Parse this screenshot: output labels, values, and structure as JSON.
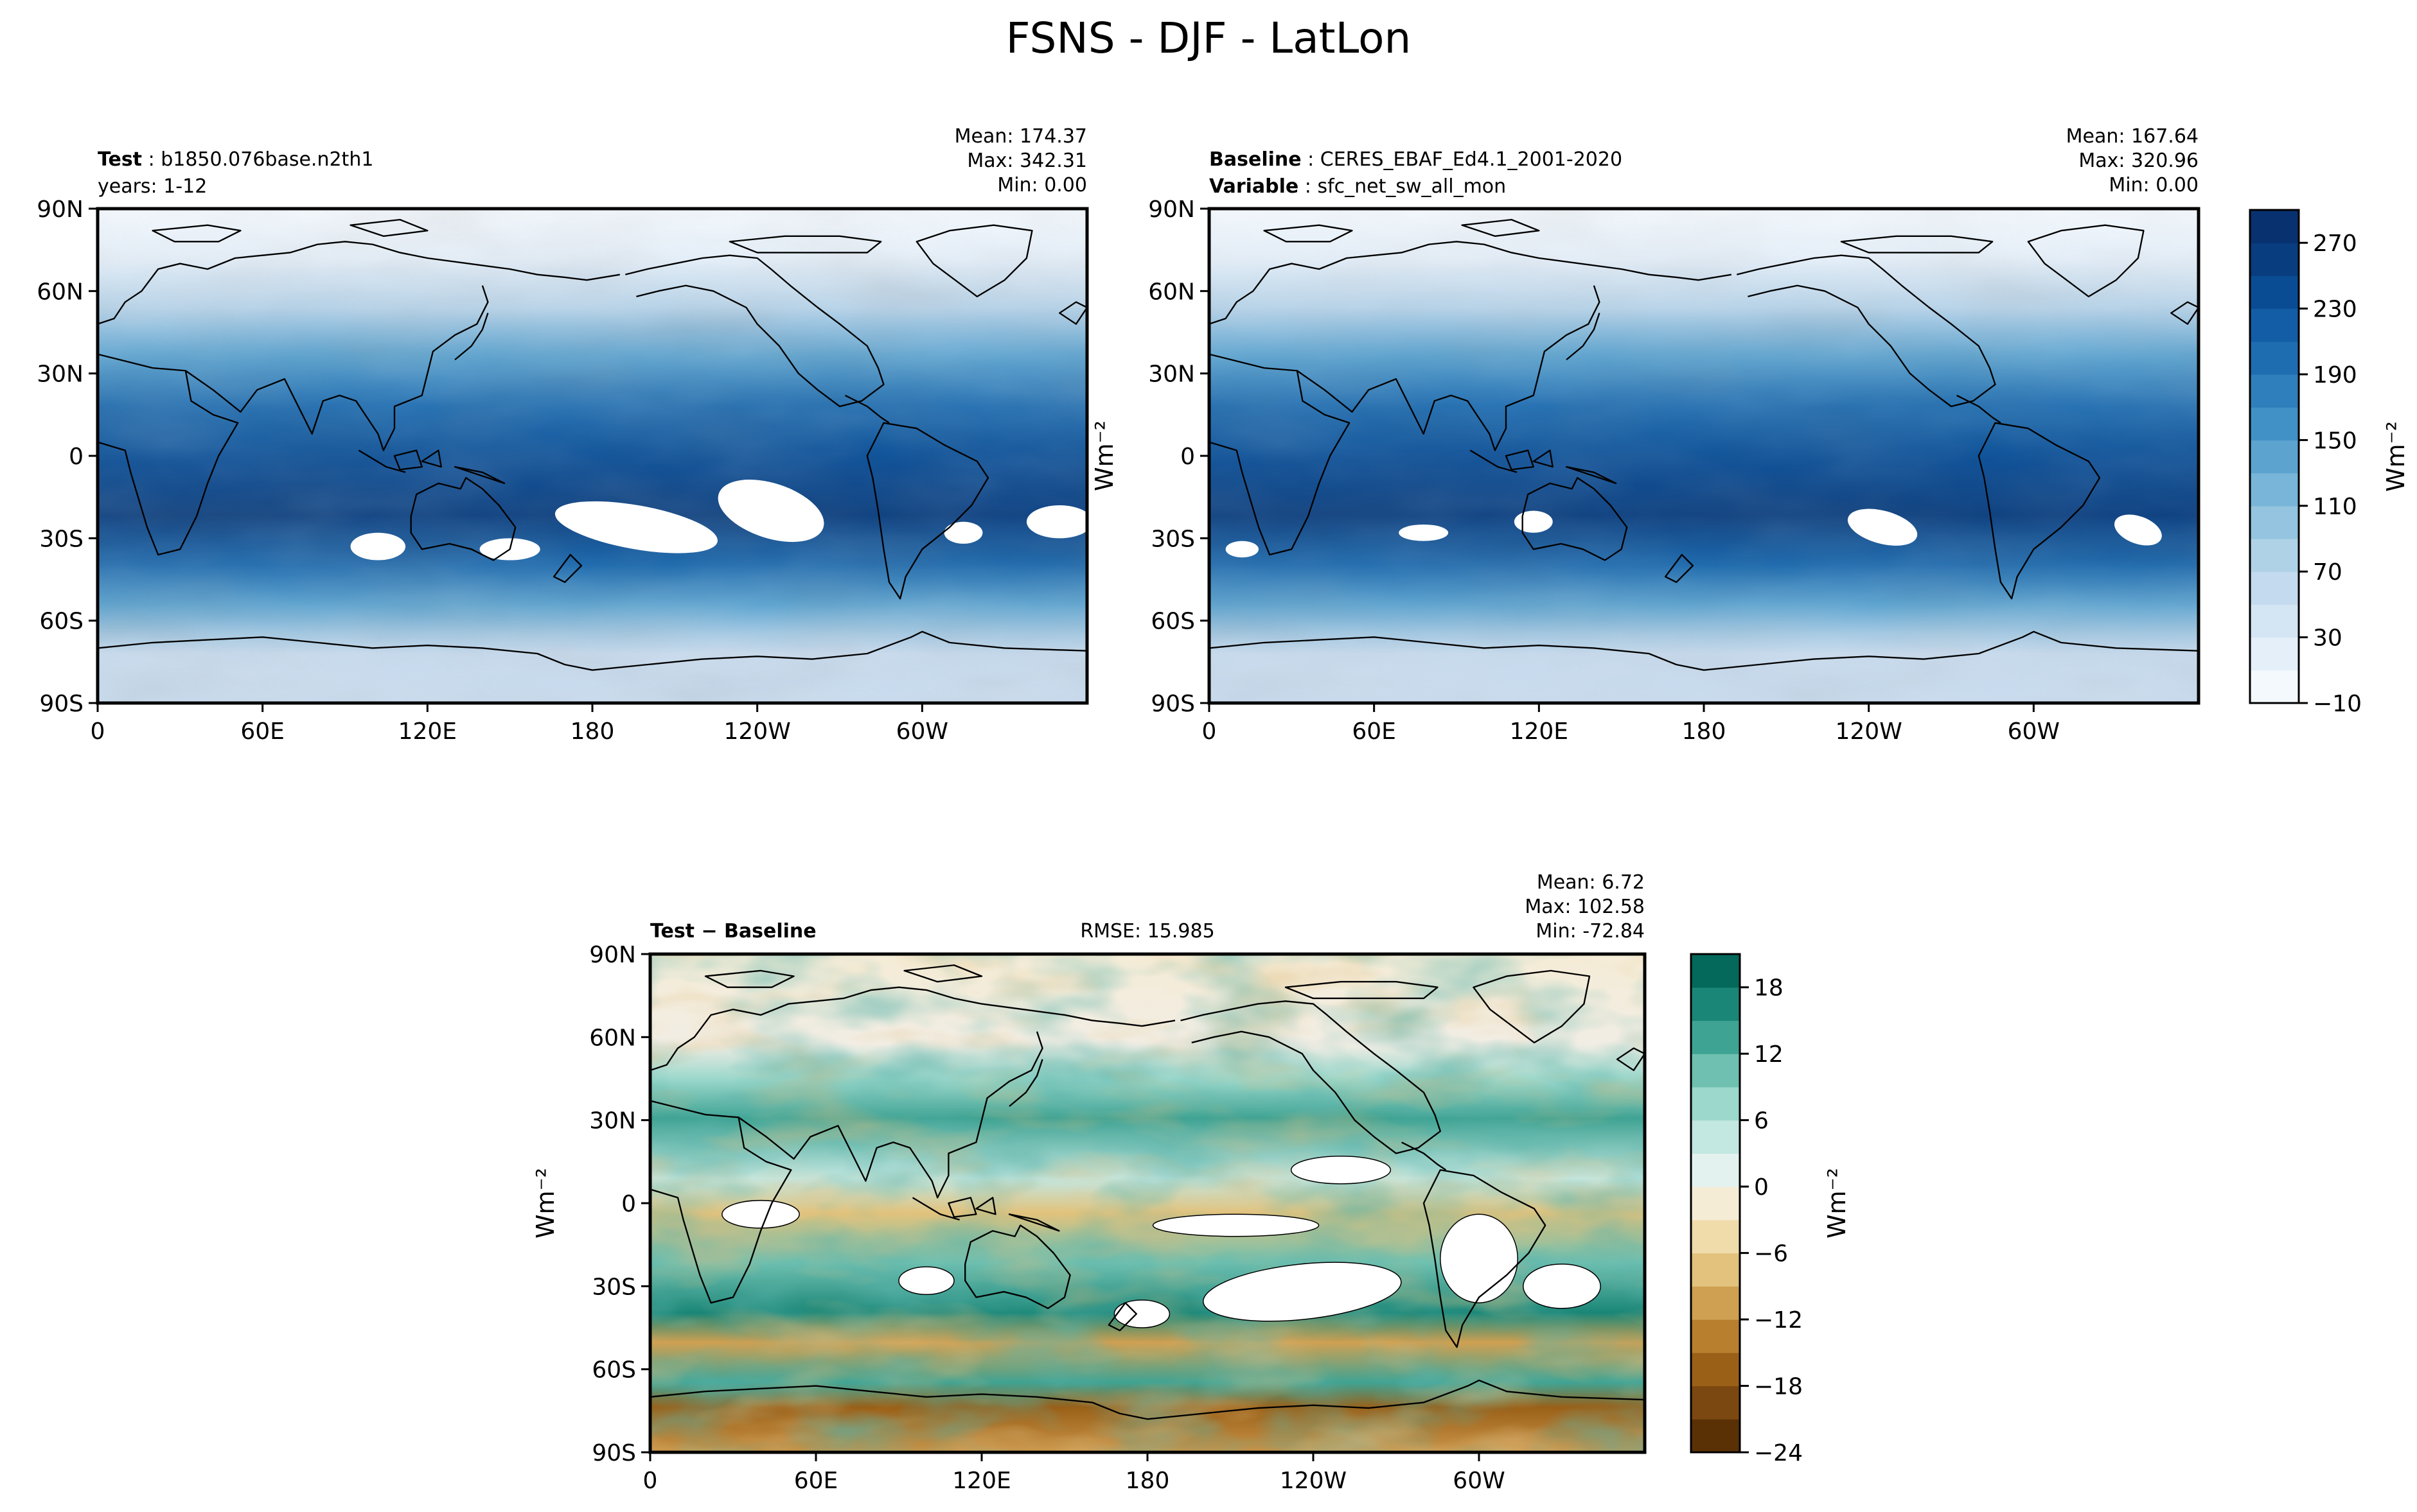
{
  "figure": {
    "suptitle": "FSNS - DJF - LatLon"
  },
  "panels": [
    {
      "id": "test",
      "header_left": [
        {
          "label": "Test",
          "value": "b1850.076base.n2th1"
        },
        {
          "label": "",
          "value": "years: 1-12"
        }
      ],
      "header_center": "",
      "stats": [
        "Mean: 174.37",
        "Max: 342.31",
        "Min:  0.00"
      ],
      "ylabel": "",
      "colormap": "blues"
    },
    {
      "id": "baseline",
      "header_left": [
        {
          "label": "Baseline",
          "value": "CERES_EBAF_Ed4.1_2001-2020"
        },
        {
          "label": "Variable",
          "value": "sfc_net_sw_all_mon"
        }
      ],
      "header_center": "",
      "stats": [
        "Mean: 167.64",
        "Max: 320.96",
        "Min:  0.00"
      ],
      "ylabel": "Wm⁻²",
      "colormap": "blues"
    },
    {
      "id": "diff",
      "header_left": [
        {
          "label": "Test − Baseline",
          "value": ""
        }
      ],
      "header_center": "RMSE: 15.985",
      "stats": [
        "Mean:  6.72",
        "Max: 102.58",
        "Min: -72.84"
      ],
      "ylabel": "Wm⁻²",
      "colormap": "brbg"
    }
  ],
  "colorbars": [
    {
      "id": "top",
      "unit_label": "Wm⁻²",
      "levels": [
        -10,
        10,
        30,
        50,
        70,
        90,
        110,
        130,
        150,
        170,
        190,
        210,
        230,
        250,
        270,
        290
      ],
      "tick_labels": [
        "−10",
        "30",
        "70",
        "110",
        "150",
        "190",
        "230",
        "270"
      ],
      "colors": [
        "#f4f9fe",
        "#e4effa",
        "#d4e5f4",
        "#c4daee",
        "#b0d2e7",
        "#94c4df",
        "#78b5d8",
        "#5ca3d0",
        "#4191c6",
        "#2f7fbc",
        "#1f6db1",
        "#125da6",
        "#0a4c94",
        "#083d7f",
        "#083170"
      ]
    },
    {
      "id": "diff",
      "unit_label": "Wm⁻²",
      "levels": [
        -24,
        -21,
        -18,
        -15,
        -12,
        -9,
        -6,
        -3,
        0,
        3,
        6,
        9,
        12,
        15,
        18,
        21
      ],
      "tick_labels": [
        "−24",
        "−18",
        "−12",
        "−6",
        "0",
        "6",
        "12",
        "18"
      ],
      "colors": [
        "#5a3005",
        "#7a4810",
        "#9a6018",
        "#b77f2e",
        "#cfa052",
        "#e2c27c",
        "#efdcaa",
        "#f5ecd6",
        "#e3f2ef",
        "#c3e7e1",
        "#9cd8cc",
        "#6fc0b0",
        "#3fa393",
        "#1a8677",
        "#04695a"
      ]
    }
  ],
  "chart_data": {
    "type": "heatmap",
    "projection": "PlateCarree lat-lon",
    "x_ticks": [
      "0",
      "60E",
      "120E",
      "180",
      "120W",
      "60W"
    ],
    "y_ticks": [
      "90N",
      "60N",
      "30N",
      "0",
      "30S",
      "60S",
      "90S"
    ],
    "xlim": [
      0,
      360
    ],
    "ylim": [
      -90,
      90
    ]
  }
}
